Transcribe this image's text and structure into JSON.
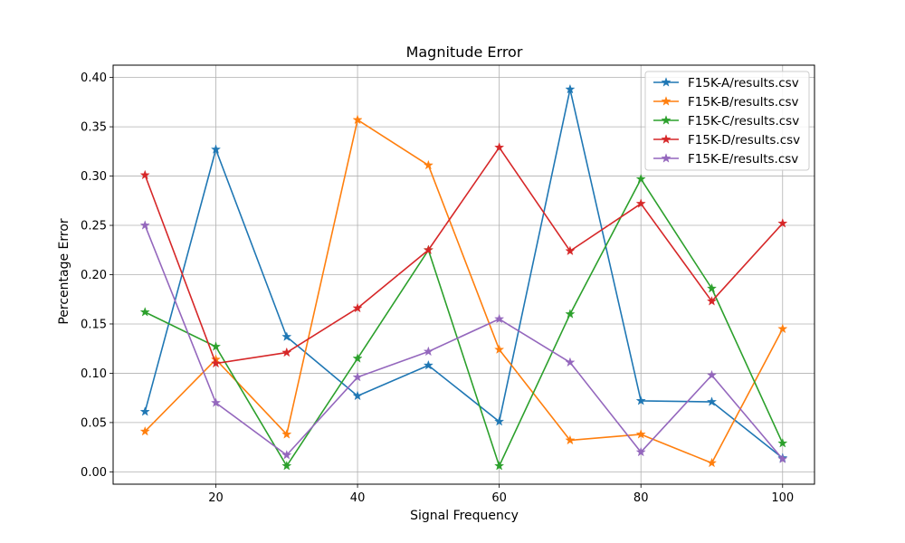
{
  "chart_data": {
    "type": "line",
    "title": "Magnitude Error",
    "xlabel": "Signal Frequency",
    "ylabel": "Percentage Error",
    "x": [
      10,
      20,
      30,
      40,
      50,
      60,
      70,
      80,
      90,
      100
    ],
    "xlim": [
      5.5,
      104.5
    ],
    "ylim": [
      -0.0125,
      0.4125
    ],
    "xticks": [
      20,
      40,
      60,
      80,
      100
    ],
    "xtick_labels": [
      "20",
      "40",
      "60",
      "80",
      "100"
    ],
    "yticks": [
      0.0,
      0.05,
      0.1,
      0.15,
      0.2,
      0.25,
      0.3,
      0.35,
      0.4
    ],
    "ytick_labels": [
      "0.00",
      "0.05",
      "0.10",
      "0.15",
      "0.20",
      "0.25",
      "0.30",
      "0.35",
      "0.40"
    ],
    "grid": true,
    "legend_position": "top-right",
    "marker": "star",
    "series": [
      {
        "name": "F15K-A/results.csv",
        "color": "#1f77b4",
        "values": [
          0.061,
          0.327,
          0.137,
          0.077,
          0.108,
          0.051,
          0.388,
          0.072,
          0.071,
          0.014
        ]
      },
      {
        "name": "F15K-B/results.csv",
        "color": "#ff7f0e",
        "values": [
          0.041,
          0.114,
          0.038,
          0.357,
          0.311,
          0.124,
          0.032,
          0.038,
          0.009,
          0.145
        ]
      },
      {
        "name": "F15K-C/results.csv",
        "color": "#2ca02c",
        "values": [
          0.162,
          0.127,
          0.006,
          0.115,
          0.225,
          0.006,
          0.16,
          0.297,
          0.186,
          0.029
        ]
      },
      {
        "name": "F15K-D/results.csv",
        "color": "#d62728",
        "values": [
          0.301,
          0.11,
          0.121,
          0.166,
          0.225,
          0.329,
          0.224,
          0.272,
          0.173,
          0.252
        ]
      },
      {
        "name": "F15K-E/results.csv",
        "color": "#9467bd",
        "values": [
          0.25,
          0.07,
          0.017,
          0.096,
          0.122,
          0.155,
          0.111,
          0.02,
          0.098,
          0.013
        ]
      }
    ]
  }
}
